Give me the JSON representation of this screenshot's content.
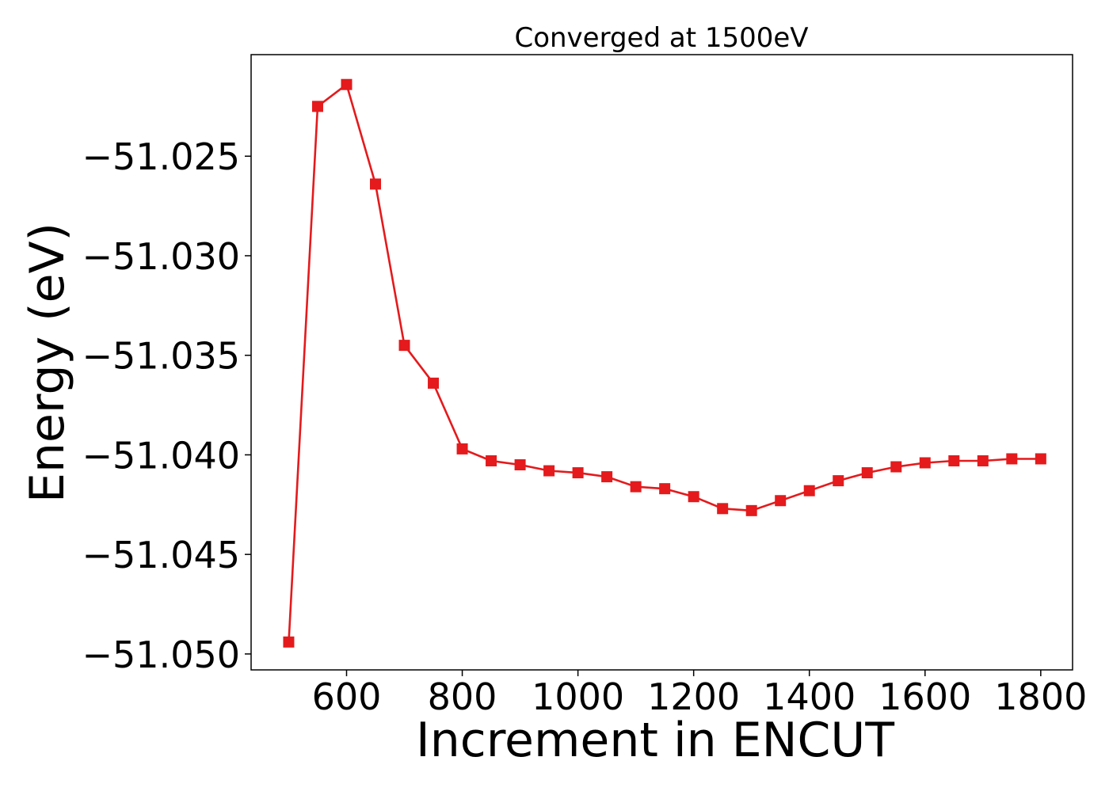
{
  "chart_data": {
    "type": "line",
    "title": "Converged at 1500eV",
    "xlabel": "Increment in ENCUT",
    "ylabel": "Energy (eV)",
    "xlim": [
      435,
      1855
    ],
    "ylim": [
      -51.0508,
      -51.0199
    ],
    "grid": false,
    "legend": "none",
    "marker": "square",
    "x_ticks": [
      600,
      800,
      1000,
      1200,
      1400,
      1600,
      1800
    ],
    "x_tick_labels": [
      "600",
      "800",
      "1000",
      "1200",
      "1400",
      "1600",
      "1800"
    ],
    "y_ticks": [
      -51.025,
      -51.03,
      -51.035,
      -51.04,
      -51.045,
      -51.05
    ],
    "y_tick_labels": [
      "−51.025",
      "−51.030",
      "−51.035",
      "−51.040",
      "−51.045",
      "−51.050"
    ],
    "series": [
      {
        "color": "#e41a1c",
        "x": [
          500,
          550,
          600,
          650,
          700,
          750,
          800,
          850,
          900,
          950,
          1000,
          1050,
          1100,
          1150,
          1200,
          1250,
          1300,
          1350,
          1400,
          1450,
          1500,
          1550,
          1600,
          1650,
          1700,
          1750,
          1800
        ],
        "values": [
          -51.0494,
          -51.0225,
          -51.0214,
          -51.0264,
          -51.0345,
          -51.0364,
          -51.0397,
          -51.0403,
          -51.0405,
          -51.0408,
          -51.0409,
          -51.0411,
          -51.0416,
          -51.0417,
          -51.0421,
          -51.0427,
          -51.0428,
          -51.0423,
          -51.0418,
          -51.0413,
          -51.0409,
          -51.0406,
          -51.0404,
          -51.0403,
          -51.0403,
          -51.0402,
          -51.0402
        ]
      }
    ]
  }
}
